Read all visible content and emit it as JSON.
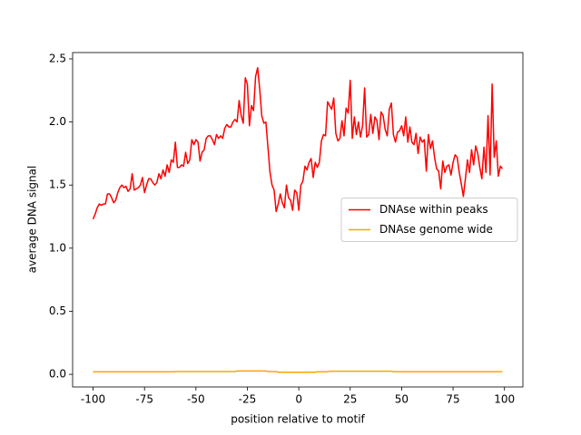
{
  "chart_data": {
    "type": "line",
    "xlabel": "position relative to motif",
    "ylabel": "average DNA signal",
    "x": [
      -100,
      -99,
      -98,
      -97,
      -96,
      -95,
      -94,
      -93,
      -92,
      -91,
      -90,
      -89,
      -88,
      -87,
      -86,
      -85,
      -84,
      -83,
      -82,
      -81,
      -80,
      -79,
      -78,
      -77,
      -76,
      -75,
      -74,
      -73,
      -72,
      -71,
      -70,
      -69,
      -68,
      -67,
      -66,
      -65,
      -64,
      -63,
      -62,
      -61,
      -60,
      -59,
      -58,
      -57,
      -56,
      -55,
      -54,
      -53,
      -52,
      -51,
      -50,
      -49,
      -48,
      -47,
      -46,
      -45,
      -44,
      -43,
      -42,
      -41,
      -40,
      -39,
      -38,
      -37,
      -36,
      -35,
      -34,
      -33,
      -32,
      -31,
      -30,
      -29,
      -28,
      -27,
      -26,
      -25,
      -24,
      -23,
      -22,
      -21,
      -20,
      -19,
      -18,
      -17,
      -16,
      -15,
      -14,
      -13,
      -12,
      -11,
      -10,
      -9,
      -8,
      -7,
      -6,
      -5,
      -4,
      -3,
      -2,
      -1,
      0,
      1,
      2,
      3,
      4,
      5,
      6,
      7,
      8,
      9,
      10,
      11,
      12,
      13,
      14,
      15,
      16,
      17,
      18,
      19,
      20,
      21,
      22,
      23,
      24,
      25,
      26,
      27,
      28,
      29,
      30,
      31,
      32,
      33,
      34,
      35,
      36,
      37,
      38,
      39,
      40,
      41,
      42,
      43,
      44,
      45,
      46,
      47,
      48,
      49,
      50,
      51,
      52,
      53,
      54,
      55,
      56,
      57,
      58,
      59,
      60,
      61,
      62,
      63,
      64,
      65,
      66,
      67,
      68,
      69,
      70,
      71,
      72,
      73,
      74,
      75,
      76,
      77,
      78,
      79,
      80,
      81,
      82,
      83,
      84,
      85,
      86,
      87,
      88,
      89,
      90,
      91,
      92,
      93,
      94,
      95,
      96,
      97,
      98,
      99
    ],
    "series": [
      {
        "name": "DNAse within peaks",
        "color": "#ff0000",
        "values": [
          1.23,
          1.27,
          1.32,
          1.35,
          1.34,
          1.35,
          1.35,
          1.43,
          1.43,
          1.4,
          1.36,
          1.38,
          1.44,
          1.48,
          1.5,
          1.48,
          1.49,
          1.45,
          1.47,
          1.59,
          1.46,
          1.47,
          1.48,
          1.5,
          1.56,
          1.44,
          1.5,
          1.55,
          1.55,
          1.52,
          1.5,
          1.52,
          1.59,
          1.55,
          1.62,
          1.57,
          1.66,
          1.6,
          1.7,
          1.68,
          1.84,
          1.64,
          1.64,
          1.66,
          1.65,
          1.76,
          1.67,
          1.7,
          1.86,
          1.82,
          1.86,
          1.84,
          1.69,
          1.76,
          1.78,
          1.87,
          1.89,
          1.89,
          1.86,
          1.82,
          1.9,
          1.87,
          1.89,
          1.87,
          1.95,
          1.98,
          1.96,
          1.96,
          2.0,
          2.02,
          2.0,
          2.17,
          2.05,
          1.99,
          2.35,
          2.3,
          1.97,
          2.13,
          2.09,
          2.36,
          2.43,
          2.26,
          2.05,
          1.99,
          2.0,
          1.8,
          1.6,
          1.5,
          1.46,
          1.29,
          1.35,
          1.43,
          1.36,
          1.32,
          1.5,
          1.4,
          1.38,
          1.3,
          1.46,
          1.44,
          1.3,
          1.5,
          1.53,
          1.65,
          1.62,
          1.68,
          1.71,
          1.56,
          1.68,
          1.64,
          1.68,
          1.85,
          1.9,
          1.89,
          2.16,
          2.13,
          2.1,
          2.19,
          1.91,
          1.85,
          1.87,
          2.01,
          1.89,
          2.11,
          2.07,
          2.33,
          1.87,
          2.04,
          1.9,
          2.0,
          1.88,
          1.97,
          2.27,
          1.88,
          1.9,
          2.06,
          1.91,
          2.04,
          2.01,
          1.86,
          2.08,
          2.05,
          1.94,
          1.89,
          2.1,
          2.15,
          1.9,
          1.84,
          1.92,
          1.93,
          1.97,
          1.89,
          2.04,
          1.84,
          1.96,
          1.84,
          1.82,
          1.91,
          1.75,
          1.88,
          1.84,
          1.86,
          1.61,
          1.9,
          1.79,
          1.85,
          1.72,
          1.63,
          1.61,
          1.47,
          1.69,
          1.6,
          1.65,
          1.66,
          1.58,
          1.68,
          1.74,
          1.72,
          1.6,
          1.51,
          1.41,
          1.55,
          1.7,
          1.6,
          1.78,
          1.66,
          1.81,
          1.75,
          1.64,
          1.55,
          1.8,
          1.6,
          2.05,
          1.58,
          2.3,
          1.72,
          1.85,
          1.57,
          1.65,
          1.63
        ]
      },
      {
        "name": "DNAse genome wide",
        "color": "#ffa500",
        "values": [
          0.02,
          0.02,
          0.02,
          0.02,
          0.02,
          0.02,
          0.02,
          0.02,
          0.02,
          0.02,
          0.02,
          0.02,
          0.02,
          0.02,
          0.02,
          0.02,
          0.02,
          0.02,
          0.02,
          0.02,
          0.02,
          0.02,
          0.02,
          0.02,
          0.02,
          0.02,
          0.02,
          0.02,
          0.02,
          0.02,
          0.02,
          0.02,
          0.02,
          0.02,
          0.02,
          0.02,
          0.02,
          0.02,
          0.02,
          0.02,
          0.022,
          0.022,
          0.022,
          0.022,
          0.022,
          0.022,
          0.022,
          0.022,
          0.022,
          0.022,
          0.022,
          0.022,
          0.022,
          0.022,
          0.022,
          0.022,
          0.022,
          0.022,
          0.022,
          0.022,
          0.022,
          0.022,
          0.022,
          0.022,
          0.022,
          0.022,
          0.022,
          0.022,
          0.022,
          0.022,
          0.027,
          0.027,
          0.027,
          0.027,
          0.027,
          0.027,
          0.027,
          0.027,
          0.027,
          0.027,
          0.027,
          0.027,
          0.027,
          0.027,
          0.027,
          0.022,
          0.022,
          0.022,
          0.022,
          0.022,
          0.017,
          0.017,
          0.017,
          0.017,
          0.017,
          0.017,
          0.017,
          0.017,
          0.017,
          0.017,
          0.017,
          0.017,
          0.017,
          0.017,
          0.017,
          0.017,
          0.017,
          0.017,
          0.017,
          0.02,
          0.02,
          0.02,
          0.02,
          0.02,
          0.02,
          0.025,
          0.025,
          0.025,
          0.025,
          0.025,
          0.025,
          0.025,
          0.025,
          0.025,
          0.025,
          0.025,
          0.025,
          0.025,
          0.025,
          0.025,
          0.025,
          0.025,
          0.025,
          0.025,
          0.025,
          0.025,
          0.025,
          0.025,
          0.025,
          0.025,
          0.025,
          0.025,
          0.025,
          0.025,
          0.025,
          0.025,
          0.021,
          0.021,
          0.021,
          0.021,
          0.021,
          0.021,
          0.021,
          0.021,
          0.021,
          0.021,
          0.021,
          0.021,
          0.021,
          0.021,
          0.021,
          0.021,
          0.021,
          0.021,
          0.021,
          0.021,
          0.021,
          0.021,
          0.021,
          0.021,
          0.021,
          0.021,
          0.021,
          0.021,
          0.021,
          0.021,
          0.021,
          0.021,
          0.021,
          0.021,
          0.021,
          0.021,
          0.021,
          0.021,
          0.021,
          0.021,
          0.021,
          0.021,
          0.021,
          0.021,
          0.021,
          0.021,
          0.021,
          0.021,
          0.021,
          0.021,
          0.021,
          0.021,
          0.021,
          0.021
        ]
      }
    ],
    "xlim": [
      -109.95,
      108.95
    ],
    "ylim": [
      -0.1,
      2.55
    ],
    "xticks": [
      -100,
      -75,
      -50,
      -25,
      0,
      25,
      50,
      75,
      100
    ],
    "yticks": [
      {
        "value": 0,
        "label": "0.0"
      },
      0.5,
      {
        "value": 1,
        "label": "1.0"
      },
      1.5,
      {
        "value": 2,
        "label": "2.0"
      },
      2.5
    ],
    "legend": "center right"
  }
}
